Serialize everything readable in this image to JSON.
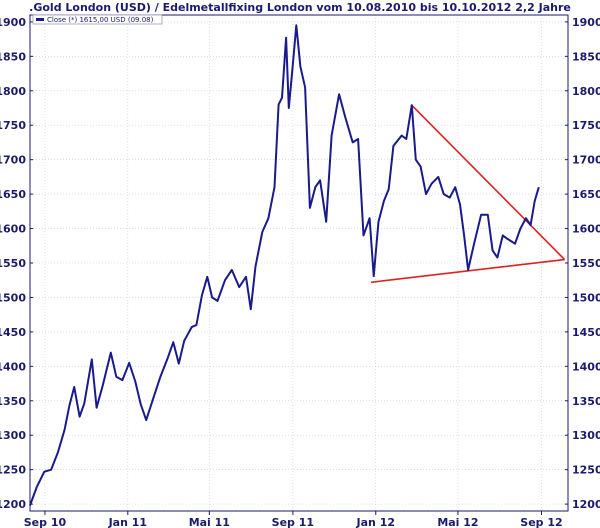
{
  "chart_data": {
    "type": "line",
    "title": ".Gold London (USD) / Edelmetallfixing London vom 10.08.2010 bis 10.10.2012 2,2 Jahre",
    "legend": {
      "label": "Close (*) 1615,00 USD (09.08)",
      "placement": "top-left",
      "color": "#1a1a8c"
    },
    "ylim": [
      1190,
      1910
    ],
    "y_ticks": [
      1200,
      1250,
      1300,
      1350,
      1400,
      1450,
      1500,
      1550,
      1600,
      1650,
      1700,
      1750,
      1800,
      1850,
      1900
    ],
    "x_ticks": [
      "Sep 10",
      "Jan 11",
      "Mai 11",
      "Sep 11",
      "Jan 12",
      "Mai 12",
      "Sep 12"
    ],
    "x_tick_dates": [
      "2010-09-01",
      "2011-01-01",
      "2011-05-01",
      "2011-09-01",
      "2012-01-01",
      "2012-05-01",
      "2012-09-01"
    ],
    "xlim": [
      "2010-08-10",
      "2012-10-10"
    ],
    "grid": true,
    "series": [
      {
        "name": "Close",
        "color": "#1a1a8c",
        "points": [
          [
            "2010-08-10",
            1198
          ],
          [
            "2010-08-20",
            1225
          ],
          [
            "2010-08-31",
            1247
          ],
          [
            "2010-09-10",
            1250
          ],
          [
            "2010-09-20",
            1275
          ],
          [
            "2010-09-30",
            1308
          ],
          [
            "2010-10-07",
            1343
          ],
          [
            "2010-10-14",
            1370
          ],
          [
            "2010-10-22",
            1327
          ],
          [
            "2010-10-29",
            1346
          ],
          [
            "2010-11-09",
            1410
          ],
          [
            "2010-11-16",
            1340
          ],
          [
            "2010-11-25",
            1372
          ],
          [
            "2010-12-07",
            1420
          ],
          [
            "2010-12-15",
            1385
          ],
          [
            "2010-12-24",
            1380
          ],
          [
            "2011-01-03",
            1405
          ],
          [
            "2011-01-12",
            1378
          ],
          [
            "2011-01-20",
            1345
          ],
          [
            "2011-01-28",
            1322
          ],
          [
            "2011-02-08",
            1355
          ],
          [
            "2011-02-18",
            1385
          ],
          [
            "2011-02-28",
            1410
          ],
          [
            "2011-03-09",
            1435
          ],
          [
            "2011-03-17",
            1404
          ],
          [
            "2011-03-25",
            1437
          ],
          [
            "2011-04-05",
            1457
          ],
          [
            "2011-04-12",
            1460
          ],
          [
            "2011-04-20",
            1503
          ],
          [
            "2011-04-28",
            1530
          ],
          [
            "2011-05-05",
            1500
          ],
          [
            "2011-05-13",
            1495
          ],
          [
            "2011-05-24",
            1525
          ],
          [
            "2011-06-03",
            1540
          ],
          [
            "2011-06-14",
            1515
          ],
          [
            "2011-06-24",
            1530
          ],
          [
            "2011-07-01",
            1483
          ],
          [
            "2011-07-08",
            1545
          ],
          [
            "2011-07-18",
            1595
          ],
          [
            "2011-07-27",
            1615
          ],
          [
            "2011-08-05",
            1660
          ],
          [
            "2011-08-11",
            1780
          ],
          [
            "2011-08-16",
            1790
          ],
          [
            "2011-08-22",
            1877
          ],
          [
            "2011-08-26",
            1775
          ],
          [
            "2011-08-31",
            1828
          ],
          [
            "2011-09-06",
            1895
          ],
          [
            "2011-09-12",
            1835
          ],
          [
            "2011-09-19",
            1805
          ],
          [
            "2011-09-26",
            1630
          ],
          [
            "2011-10-04",
            1660
          ],
          [
            "2011-10-11",
            1670
          ],
          [
            "2011-10-20",
            1610
          ],
          [
            "2011-10-28",
            1735
          ],
          [
            "2011-11-08",
            1795
          ],
          [
            "2011-11-17",
            1762
          ],
          [
            "2011-11-28",
            1725
          ],
          [
            "2011-12-06",
            1730
          ],
          [
            "2011-12-14",
            1590
          ],
          [
            "2011-12-23",
            1615
          ],
          [
            "2011-12-29",
            1531
          ],
          [
            "2012-01-05",
            1610
          ],
          [
            "2012-01-13",
            1640
          ],
          [
            "2012-01-20",
            1657
          ],
          [
            "2012-01-27",
            1720
          ],
          [
            "2012-02-08",
            1735
          ],
          [
            "2012-02-15",
            1730
          ],
          [
            "2012-02-23",
            1779
          ],
          [
            "2012-02-29",
            1700
          ],
          [
            "2012-03-07",
            1690
          ],
          [
            "2012-03-15",
            1650
          ],
          [
            "2012-03-23",
            1665
          ],
          [
            "2012-04-02",
            1675
          ],
          [
            "2012-04-10",
            1650
          ],
          [
            "2012-04-19",
            1645
          ],
          [
            "2012-04-27",
            1660
          ],
          [
            "2012-05-04",
            1635
          ],
          [
            "2012-05-10",
            1590
          ],
          [
            "2012-05-16",
            1540
          ],
          [
            "2012-05-24",
            1575
          ],
          [
            "2012-06-04",
            1620
          ],
          [
            "2012-06-14",
            1620
          ],
          [
            "2012-06-21",
            1568
          ],
          [
            "2012-06-28",
            1558
          ],
          [
            "2012-07-06",
            1590
          ],
          [
            "2012-07-13",
            1585
          ],
          [
            "2012-07-24",
            1578
          ],
          [
            "2012-08-01",
            1600
          ],
          [
            "2012-08-09",
            1615
          ],
          [
            "2012-08-16",
            1605
          ],
          [
            "2012-08-22",
            1640
          ],
          [
            "2012-08-28",
            1660
          ]
        ]
      }
    ],
    "trendlines": [
      {
        "name": "",
        "color": "#e02020",
        "from": [
          "2012-02-22",
          1780
        ],
        "to": [
          "2012-10-05",
          1555
        ]
      },
      {
        "name": "",
        "color": "#e02020",
        "from": [
          "2011-12-25",
          1522
        ],
        "to": [
          "2012-10-05",
          1555
        ]
      }
    ]
  }
}
